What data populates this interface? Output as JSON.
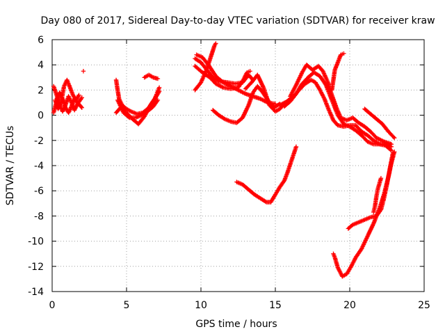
{
  "chart_data": {
    "type": "scatter",
    "title": "Day 080 of 2017, Sidereal Day-to-day VTEC variation (SDTVAR) for receiver kraw",
    "xlabel": "GPS time / hours",
    "ylabel": "SDTVAR / TECUs",
    "xlim": [
      0,
      25
    ],
    "ylim": [
      -14,
      6
    ],
    "xticks": [
      "0",
      "5",
      "10",
      "15",
      "20",
      "25"
    ],
    "yticks": [
      "-14",
      "-12",
      "-10",
      "-8",
      "-6",
      "-4",
      "-2",
      "0",
      "2",
      "4",
      "6"
    ],
    "grid": true,
    "marker": "plus",
    "color": "#ff0000",
    "series": [
      {
        "points": [
          [
            0.1,
            2.3
          ],
          [
            0.3,
            1.6
          ],
          [
            0.5,
            0.9
          ],
          [
            0.7,
            0.3
          ],
          [
            0.9,
            0.8
          ],
          [
            1.1,
            1.5
          ],
          [
            1.3,
            1.0
          ],
          [
            1.5,
            0.4
          ],
          [
            1.7,
            0.9
          ],
          [
            2.0,
            1.4
          ]
        ]
      },
      {
        "points": [
          [
            0.1,
            0.2
          ],
          [
            0.3,
            1.1
          ],
          [
            0.5,
            1.8
          ],
          [
            0.7,
            1.3
          ],
          [
            0.9,
            0.6
          ],
          [
            1.1,
            0.2
          ],
          [
            1.3,
            0.7
          ],
          [
            1.5,
            1.3
          ],
          [
            1.7,
            1.0
          ],
          [
            2.0,
            0.6
          ]
        ]
      },
      {
        "points": [
          [
            0.2,
            1.2
          ],
          [
            0.4,
            0.5
          ],
          [
            0.6,
            1.0
          ],
          [
            0.8,
            2.3
          ],
          [
            1.0,
            2.8
          ],
          [
            1.2,
            2.2
          ],
          [
            1.4,
            1.6
          ],
          [
            1.6,
            1.2
          ],
          [
            1.8,
            1.6
          ]
        ]
      },
      {
        "points": [
          [
            2.1,
            3.5
          ]
        ]
      },
      {
        "points": [
          [
            4.3,
            2.8
          ],
          [
            4.4,
            2.0
          ],
          [
            4.5,
            1.3
          ],
          [
            4.7,
            0.8
          ],
          [
            5.0,
            0.5
          ],
          [
            5.3,
            0.3
          ],
          [
            5.7,
            0.1
          ],
          [
            6.1,
            0.2
          ],
          [
            6.5,
            0.6
          ],
          [
            6.9,
            1.3
          ],
          [
            7.2,
            2.2
          ]
        ]
      },
      {
        "points": [
          [
            4.3,
            0.2
          ],
          [
            4.6,
            0.6
          ],
          [
            5.0,
            0.2
          ],
          [
            5.4,
            -0.3
          ],
          [
            5.8,
            -0.7
          ],
          [
            6.2,
            -0.1
          ],
          [
            6.6,
            0.8
          ],
          [
            7.0,
            1.5
          ],
          [
            7.2,
            1.9
          ]
        ]
      },
      {
        "points": [
          [
            4.4,
            1.2
          ],
          [
            4.8,
            0.2
          ],
          [
            5.2,
            -0.2
          ],
          [
            5.6,
            -0.2
          ],
          [
            6.0,
            0.0
          ],
          [
            6.4,
            0.3
          ],
          [
            6.8,
            0.7
          ],
          [
            7.1,
            1.2
          ]
        ]
      },
      {
        "points": [
          [
            6.2,
            3.0
          ],
          [
            6.5,
            3.2
          ],
          [
            6.8,
            3.0
          ],
          [
            7.1,
            2.9
          ]
        ]
      },
      {
        "points": [
          [
            9.6,
            4.5
          ],
          [
            10.0,
            4.2
          ],
          [
            10.4,
            3.6
          ],
          [
            10.8,
            3.0
          ],
          [
            11.2,
            2.7
          ],
          [
            11.8,
            2.6
          ],
          [
            12.3,
            2.5
          ],
          [
            12.8,
            2.6
          ],
          [
            13.2,
            3.2
          ],
          [
            13.5,
            2.8
          ]
        ]
      },
      {
        "points": [
          [
            9.6,
            3.9
          ],
          [
            10.1,
            3.4
          ],
          [
            10.6,
            3.0
          ],
          [
            11.0,
            2.5
          ],
          [
            11.5,
            2.2
          ],
          [
            12.0,
            2.1
          ],
          [
            12.5,
            2.2
          ],
          [
            12.8,
            2.7
          ],
          [
            13.1,
            3.4
          ],
          [
            13.3,
            3.5
          ]
        ]
      },
      {
        "points": [
          [
            9.7,
            4.8
          ],
          [
            10.1,
            4.6
          ],
          [
            10.5,
            4.0
          ],
          [
            11.0,
            3.1
          ],
          [
            11.5,
            2.6
          ],
          [
            12.0,
            2.3
          ],
          [
            12.5,
            2.0
          ],
          [
            13.0,
            1.7
          ],
          [
            13.5,
            1.5
          ],
          [
            14.0,
            1.3
          ],
          [
            14.5,
            1.0
          ],
          [
            15.0,
            0.9
          ]
        ]
      },
      {
        "points": [
          [
            9.6,
            2.0
          ],
          [
            10.0,
            2.6
          ],
          [
            10.3,
            3.4
          ],
          [
            10.6,
            4.4
          ],
          [
            10.9,
            5.5
          ],
          [
            11.0,
            5.7
          ]
        ]
      },
      {
        "points": [
          [
            10.8,
            0.4
          ],
          [
            11.2,
            0.0
          ],
          [
            11.6,
            -0.3
          ],
          [
            12.0,
            -0.5
          ],
          [
            12.4,
            -0.6
          ],
          [
            12.8,
            -0.2
          ],
          [
            13.2,
            0.8
          ],
          [
            13.5,
            1.8
          ],
          [
            13.8,
            2.3
          ],
          [
            14.1,
            1.9
          ],
          [
            14.5,
            1.2
          ],
          [
            14.9,
            0.6
          ],
          [
            15.3,
            0.9
          ]
        ]
      },
      {
        "points": [
          [
            13.0,
            2.1
          ],
          [
            13.4,
            2.6
          ],
          [
            13.8,
            3.2
          ],
          [
            14.2,
            2.2
          ],
          [
            14.6,
            0.8
          ],
          [
            15.0,
            0.3
          ],
          [
            15.3,
            0.5
          ],
          [
            15.7,
            1.0
          ],
          [
            16.0,
            1.3
          ]
        ]
      },
      {
        "points": [
          [
            15.3,
            0.8
          ],
          [
            15.8,
            1.1
          ],
          [
            16.2,
            1.5
          ],
          [
            16.6,
            2.0
          ],
          [
            17.0,
            2.5
          ],
          [
            17.4,
            2.8
          ],
          [
            17.7,
            2.6
          ],
          [
            18.0,
            2.0
          ],
          [
            18.3,
            1.3
          ],
          [
            18.6,
            0.4
          ],
          [
            18.9,
            -0.4
          ],
          [
            19.2,
            -0.8
          ],
          [
            19.6,
            -0.9
          ],
          [
            20.0,
            -0.8
          ],
          [
            20.4,
            -0.8
          ],
          [
            20.8,
            -1.3
          ],
          [
            21.2,
            -1.6
          ],
          [
            21.6,
            -2.0
          ],
          [
            22.0,
            -2.3
          ],
          [
            22.4,
            -2.4
          ],
          [
            22.8,
            -2.8
          ]
        ]
      },
      {
        "points": [
          [
            16.0,
            1.5
          ],
          [
            16.4,
            2.4
          ],
          [
            16.8,
            3.4
          ],
          [
            17.1,
            4.0
          ],
          [
            17.5,
            3.6
          ],
          [
            17.9,
            3.9
          ],
          [
            18.2,
            3.5
          ],
          [
            18.5,
            2.7
          ],
          [
            18.8,
            1.6
          ],
          [
            19.1,
            0.6
          ],
          [
            19.4,
            -0.2
          ],
          [
            19.8,
            -0.4
          ],
          [
            20.2,
            -0.2
          ],
          [
            20.6,
            -0.6
          ],
          [
            21.0,
            -0.9
          ],
          [
            21.4,
            -1.3
          ],
          [
            21.8,
            -1.8
          ],
          [
            22.3,
            -2.1
          ],
          [
            22.8,
            -2.3
          ]
        ]
      },
      {
        "points": [
          [
            15.6,
            0.7
          ],
          [
            16.0,
            1.1
          ],
          [
            16.4,
            1.7
          ],
          [
            16.8,
            2.5
          ],
          [
            17.2,
            3.0
          ],
          [
            17.6,
            3.4
          ],
          [
            18.0,
            3.1
          ],
          [
            18.4,
            2.4
          ],
          [
            18.8,
            1.2
          ],
          [
            19.2,
            0.0
          ],
          [
            19.6,
            -0.7
          ],
          [
            20.0,
            -0.9
          ],
          [
            20.4,
            -1.2
          ],
          [
            20.8,
            -1.6
          ],
          [
            21.2,
            -2.1
          ],
          [
            21.6,
            -2.3
          ],
          [
            22.0,
            -2.3
          ],
          [
            22.4,
            -2.3
          ],
          [
            22.8,
            -2.5
          ]
        ]
      },
      {
        "points": [
          [
            18.8,
            2.0
          ],
          [
            18.9,
            2.8
          ],
          [
            19.0,
            3.6
          ],
          [
            19.2,
            4.2
          ],
          [
            19.4,
            4.8
          ],
          [
            19.6,
            4.9
          ]
        ]
      },
      {
        "points": [
          [
            21.0,
            0.5
          ],
          [
            21.4,
            0.1
          ],
          [
            21.8,
            -0.3
          ],
          [
            22.2,
            -0.7
          ],
          [
            22.6,
            -1.3
          ],
          [
            23.0,
            -1.8
          ]
        ]
      },
      {
        "points": [
          [
            22.9,
            -3.0
          ],
          [
            22.7,
            -4.2
          ],
          [
            22.5,
            -5.5
          ],
          [
            22.3,
            -6.6
          ],
          [
            22.1,
            -7.5
          ],
          [
            21.8,
            -8.0
          ],
          [
            21.4,
            -8.1
          ],
          [
            21.0,
            -8.3
          ],
          [
            20.6,
            -8.5
          ],
          [
            20.2,
            -8.7
          ],
          [
            19.9,
            -9.0
          ]
        ]
      },
      {
        "points": [
          [
            23.0,
            -2.9
          ],
          [
            22.8,
            -3.8
          ],
          [
            22.6,
            -4.9
          ],
          [
            22.3,
            -6.3
          ],
          [
            22.0,
            -7.4
          ],
          [
            21.6,
            -8.6
          ],
          [
            21.2,
            -9.6
          ],
          [
            20.8,
            -10.6
          ],
          [
            20.4,
            -11.3
          ],
          [
            20.1,
            -12.0
          ],
          [
            19.8,
            -12.6
          ],
          [
            19.5,
            -12.8
          ],
          [
            19.2,
            -12.1
          ],
          [
            19.0,
            -11.3
          ],
          [
            18.9,
            -11.0
          ]
        ]
      },
      {
        "points": [
          [
            22.1,
            -5.0
          ],
          [
            21.9,
            -5.8
          ],
          [
            21.8,
            -6.4
          ],
          [
            21.7,
            -7.2
          ],
          [
            21.6,
            -7.7
          ]
        ]
      },
      {
        "points": [
          [
            12.4,
            -5.3
          ],
          [
            12.8,
            -5.5
          ],
          [
            13.2,
            -5.9
          ],
          [
            13.6,
            -6.3
          ],
          [
            14.0,
            -6.6
          ],
          [
            14.4,
            -6.9
          ],
          [
            14.7,
            -6.9
          ],
          [
            15.0,
            -6.3
          ],
          [
            15.3,
            -5.7
          ],
          [
            15.6,
            -5.2
          ],
          [
            15.8,
            -4.6
          ],
          [
            16.0,
            -3.9
          ],
          [
            16.2,
            -3.2
          ],
          [
            16.4,
            -2.5
          ]
        ]
      }
    ]
  }
}
